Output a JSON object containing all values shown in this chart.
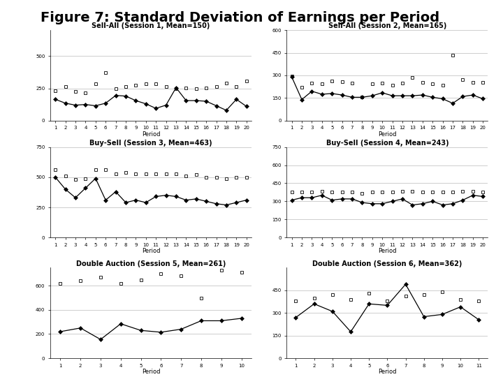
{
  "title": "Figure 7: Standard Deviation of Earnings per Period",
  "subplots": [
    {
      "title": "Sell-All (Session 1, Mean=150)",
      "periods": [
        1,
        2,
        3,
        4,
        5,
        6,
        7,
        8,
        9,
        10,
        11,
        12,
        13,
        14,
        15,
        16,
        17,
        18,
        19,
        20
      ],
      "line1": [
        165,
        135,
        120,
        125,
        115,
        135,
        195,
        190,
        155,
        130,
        95,
        120,
        255,
        155,
        155,
        150,
        115,
        80,
        165,
        110
      ],
      "line2": [
        230,
        265,
        225,
        215,
        285,
        370,
        245,
        265,
        275,
        285,
        285,
        265,
        250,
        255,
        245,
        255,
        265,
        290,
        265,
        305
      ],
      "ylim": [
        0,
        700
      ],
      "yticks": [
        0,
        250,
        500
      ],
      "nperiods": 20
    },
    {
      "title": "Sell-All (Session 2, Mean=165)",
      "periods": [
        1,
        2,
        3,
        4,
        5,
        6,
        7,
        8,
        9,
        10,
        11,
        12,
        13,
        14,
        15,
        16,
        17,
        18,
        19,
        20
      ],
      "line1": [
        290,
        140,
        195,
        175,
        180,
        170,
        155,
        155,
        165,
        185,
        165,
        165,
        165,
        170,
        155,
        145,
        115,
        160,
        170,
        145
      ],
      "line2": [
        295,
        220,
        250,
        245,
        265,
        260,
        250,
        155,
        245,
        250,
        235,
        250,
        285,
        255,
        245,
        235,
        435,
        270,
        255,
        255
      ],
      "ylim": [
        0,
        600
      ],
      "yticks": [
        0,
        150,
        300,
        450,
        600
      ],
      "nperiods": 20
    },
    {
      "title": "Buy-Sell (Session 3, Mean=463)",
      "periods": [
        1,
        2,
        3,
        4,
        5,
        6,
        7,
        8,
        9,
        10,
        11,
        12,
        13,
        14,
        15,
        16,
        17,
        18,
        19,
        20
      ],
      "line1": [
        500,
        400,
        330,
        410,
        490,
        310,
        380,
        290,
        310,
        290,
        340,
        350,
        340,
        310,
        320,
        300,
        280,
        270,
        290,
        310
      ],
      "line2": [
        560,
        510,
        480,
        490,
        560,
        560,
        530,
        540,
        530,
        530,
        530,
        530,
        530,
        510,
        520,
        500,
        500,
        490,
        500,
        500
      ],
      "ylim": [
        0,
        750
      ],
      "yticks": [
        0,
        250,
        500,
        750
      ],
      "nperiods": 20
    },
    {
      "title": "Buy-Sell (Session 4, Mean=243)",
      "periods": [
        1,
        2,
        3,
        4,
        5,
        6,
        7,
        8,
        9,
        10,
        11,
        12,
        13,
        14,
        15,
        16,
        17,
        18,
        19,
        20
      ],
      "line1": [
        310,
        330,
        330,
        350,
        310,
        320,
        320,
        290,
        280,
        280,
        300,
        320,
        270,
        280,
        300,
        270,
        280,
        310,
        350,
        340
      ],
      "line2": [
        380,
        375,
        375,
        385,
        375,
        375,
        375,
        365,
        375,
        375,
        375,
        385,
        385,
        375,
        375,
        375,
        375,
        385,
        385,
        375
      ],
      "ylim": [
        0,
        750
      ],
      "yticks": [
        0,
        150,
        300,
        450,
        600,
        750
      ],
      "nperiods": 20
    },
    {
      "title": "Double Auction (Session 5, Mean=261)",
      "periods": [
        1,
        2,
        3,
        4,
        5,
        6,
        7,
        8,
        9,
        10
      ],
      "line1": [
        220,
        250,
        155,
        285,
        230,
        215,
        240,
        310,
        310,
        330
      ],
      "line2": [
        620,
        640,
        670,
        620,
        650,
        700,
        680,
        500,
        730,
        710
      ],
      "ylim": [
        0,
        750
      ],
      "yticks": [
        0,
        200,
        400,
        600
      ],
      "nperiods": 10
    },
    {
      "title": "Double Auction (Session 6, Mean=362)",
      "periods": [
        1,
        2,
        3,
        4,
        5,
        6,
        7,
        8,
        9,
        10,
        11
      ],
      "line1": [
        270,
        360,
        310,
        175,
        360,
        350,
        490,
        275,
        290,
        340,
        255
      ],
      "line2": [
        380,
        400,
        420,
        390,
        430,
        380,
        410,
        420,
        440,
        390,
        380
      ],
      "ylim": [
        0,
        600
      ],
      "yticks": [
        0,
        150,
        300,
        450
      ],
      "nperiods": 11
    }
  ],
  "background_color": "#ffffff",
  "xlabel": "Period",
  "grid_color": "#bbbbbb",
  "title_fontsize": 14,
  "subtitle_fontsize": 7,
  "tick_fontsize": 5,
  "xlabel_fontsize": 6
}
